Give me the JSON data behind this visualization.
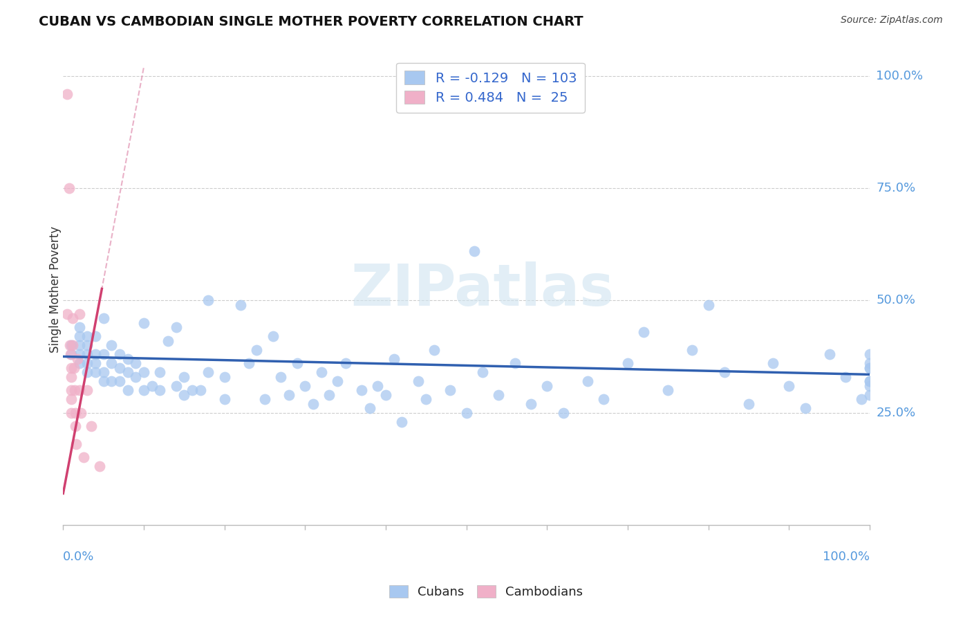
{
  "title": "CUBAN VS CAMBODIAN SINGLE MOTHER POVERTY CORRELATION CHART",
  "source": "Source: ZipAtlas.com",
  "ylabel": "Single Mother Poverty",
  "watermark": "ZIPatlas",
  "legend": {
    "cuban_R": -0.129,
    "cuban_N": 103,
    "cambodian_R": 0.484,
    "cambodian_N": 25
  },
  "cuban_color": "#a8c8f0",
  "cambodian_color": "#f0b0c8",
  "cuban_line_color": "#3060b0",
  "cambodian_line_color": "#d04070",
  "cambodian_line_dashed_color": "#e090b0",
  "right_ytick_color": "#5599dd",
  "xlabel_color": "#5599dd",
  "grid_color": "#cccccc",
  "background_color": "#ffffff",
  "xlim": [
    0.0,
    1.0
  ],
  "ylim": [
    0.0,
    1.05
  ],
  "right_ytick_vals": [
    1.0,
    0.75,
    0.5,
    0.25
  ],
  "right_ytick_labels": [
    "100.0%",
    "75.0%",
    "50.0%",
    "25.0%"
  ],
  "cuban_x": [
    0.01,
    0.01,
    0.02,
    0.02,
    0.02,
    0.02,
    0.02,
    0.03,
    0.03,
    0.03,
    0.03,
    0.03,
    0.04,
    0.04,
    0.04,
    0.04,
    0.05,
    0.05,
    0.05,
    0.05,
    0.06,
    0.06,
    0.06,
    0.07,
    0.07,
    0.07,
    0.08,
    0.08,
    0.08,
    0.09,
    0.09,
    0.1,
    0.1,
    0.1,
    0.11,
    0.12,
    0.12,
    0.13,
    0.14,
    0.14,
    0.15,
    0.15,
    0.16,
    0.17,
    0.18,
    0.18,
    0.2,
    0.2,
    0.22,
    0.23,
    0.24,
    0.25,
    0.26,
    0.27,
    0.28,
    0.29,
    0.3,
    0.31,
    0.32,
    0.33,
    0.34,
    0.35,
    0.37,
    0.38,
    0.39,
    0.4,
    0.41,
    0.42,
    0.44,
    0.45,
    0.46,
    0.48,
    0.5,
    0.51,
    0.52,
    0.54,
    0.56,
    0.58,
    0.6,
    0.62,
    0.65,
    0.67,
    0.7,
    0.72,
    0.75,
    0.78,
    0.8,
    0.82,
    0.85,
    0.88,
    0.9,
    0.92,
    0.95,
    0.97,
    0.99,
    1.0,
    1.0,
    1.0,
    1.0,
    1.0,
    1.0,
    1.0,
    1.0
  ],
  "cuban_y": [
    0.38,
    0.4,
    0.36,
    0.38,
    0.4,
    0.42,
    0.44,
    0.34,
    0.36,
    0.38,
    0.4,
    0.42,
    0.34,
    0.36,
    0.38,
    0.42,
    0.32,
    0.34,
    0.38,
    0.46,
    0.32,
    0.36,
    0.4,
    0.32,
    0.35,
    0.38,
    0.3,
    0.34,
    0.37,
    0.33,
    0.36,
    0.3,
    0.34,
    0.45,
    0.31,
    0.3,
    0.34,
    0.41,
    0.31,
    0.44,
    0.29,
    0.33,
    0.3,
    0.3,
    0.5,
    0.34,
    0.28,
    0.33,
    0.49,
    0.36,
    0.39,
    0.28,
    0.42,
    0.33,
    0.29,
    0.36,
    0.31,
    0.27,
    0.34,
    0.29,
    0.32,
    0.36,
    0.3,
    0.26,
    0.31,
    0.29,
    0.37,
    0.23,
    0.32,
    0.28,
    0.39,
    0.3,
    0.25,
    0.61,
    0.34,
    0.29,
    0.36,
    0.27,
    0.31,
    0.25,
    0.32,
    0.28,
    0.36,
    0.43,
    0.3,
    0.39,
    0.49,
    0.34,
    0.27,
    0.36,
    0.31,
    0.26,
    0.38,
    0.33,
    0.28,
    0.35,
    0.32,
    0.29,
    0.36,
    0.31,
    0.35,
    0.38,
    0.32
  ],
  "cambodian_x": [
    0.005,
    0.005,
    0.007,
    0.008,
    0.009,
    0.01,
    0.01,
    0.01,
    0.01,
    0.01,
    0.012,
    0.012,
    0.013,
    0.014,
    0.015,
    0.015,
    0.016,
    0.018,
    0.02,
    0.02,
    0.022,
    0.025,
    0.03,
    0.035,
    0.045
  ],
  "cambodian_y": [
    0.96,
    0.47,
    0.75,
    0.4,
    0.38,
    0.35,
    0.33,
    0.3,
    0.28,
    0.25,
    0.46,
    0.4,
    0.35,
    0.3,
    0.25,
    0.22,
    0.18,
    0.37,
    0.47,
    0.3,
    0.25,
    0.15,
    0.3,
    0.22,
    0.13
  ]
}
